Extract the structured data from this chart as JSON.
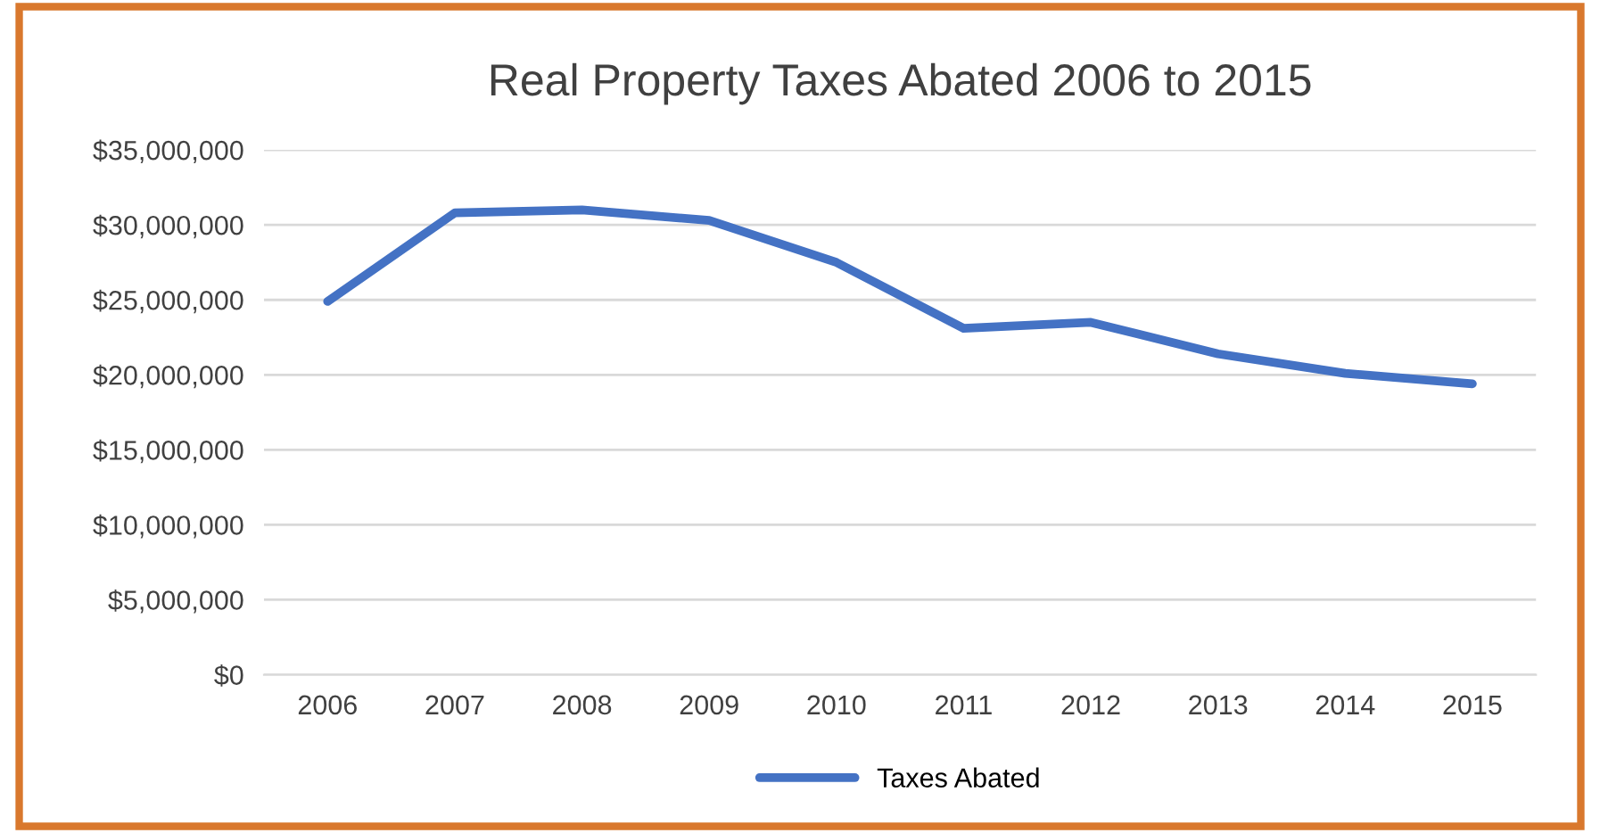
{
  "chart_data": {
    "type": "line",
    "title": "Real Property Taxes Abated 2006 to 2015",
    "categories": [
      "2006",
      "2007",
      "2008",
      "2009",
      "2010",
      "2011",
      "2012",
      "2013",
      "2014",
      "2015"
    ],
    "series": [
      {
        "name": "Taxes Abated",
        "color": "#4472c4",
        "values": [
          24900000,
          30800000,
          31000000,
          30300000,
          27500000,
          23100000,
          23500000,
          21400000,
          20100000,
          19400000
        ]
      }
    ],
    "ylim": [
      0,
      35000000
    ],
    "yticks": [
      {
        "value": 0,
        "label": "$0"
      },
      {
        "value": 5000000,
        "label": "$5,000,000"
      },
      {
        "value": 10000000,
        "label": "$10,000,000"
      },
      {
        "value": 15000000,
        "label": "$15,000,000"
      },
      {
        "value": 20000000,
        "label": "$20,000,000"
      },
      {
        "value": 25000000,
        "label": "$25,000,000"
      },
      {
        "value": 30000000,
        "label": "$30,000,000"
      },
      {
        "value": 35000000,
        "label": "$35,000,000"
      }
    ],
    "grid": "y",
    "legend": "bottom",
    "marker": "none",
    "line_style": "solid"
  }
}
